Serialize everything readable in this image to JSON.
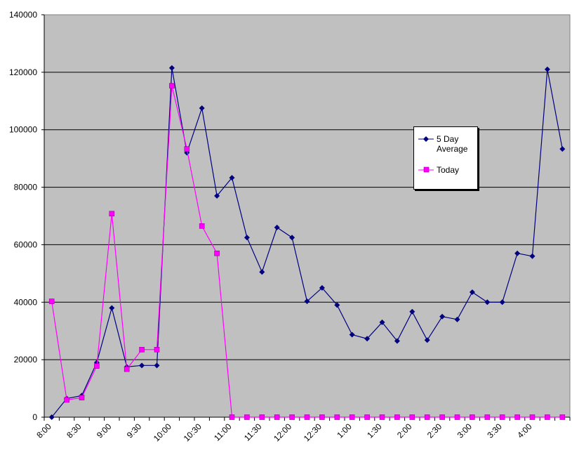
{
  "chart_data": {
    "type": "line",
    "title": "",
    "xlabel": "",
    "ylabel": "",
    "ylim": [
      0,
      140000
    ],
    "yticks": [
      0,
      20000,
      40000,
      60000,
      80000,
      100000,
      120000,
      140000
    ],
    "ytick_labels": [
      "0",
      "20000",
      "40000",
      "60000",
      "80000",
      "100000",
      "120000",
      "140000"
    ],
    "xtick_labels": [
      "8:00",
      "8:30",
      "9:00",
      "9:30",
      "10:00",
      "10:30",
      "11:00",
      "11:30",
      "12:00",
      "12:30",
      "1:00",
      "1:30",
      "2:00",
      "2:30",
      "3:00",
      "3:30",
      "4:00"
    ],
    "grid": "horizontal",
    "background": "#c0c0c0",
    "legend_position": "right",
    "series": [
      {
        "name": "5 Day Average",
        "legend_label": "5 Day\nAverage",
        "color": "#000080",
        "marker": "diamond",
        "values": [
          0,
          6500,
          7500,
          19000,
          38000,
          17500,
          18000,
          18000,
          121500,
          92000,
          107500,
          77000,
          83300,
          62500,
          50500,
          66000,
          62500,
          40300,
          45000,
          39000,
          28700,
          27300,
          33000,
          26500,
          36700,
          26800,
          35000,
          34000,
          43500,
          40000,
          40000,
          57000,
          56000,
          121000,
          93300
        ]
      },
      {
        "name": "Today",
        "legend_label": "Today",
        "color": "#ff00ff",
        "marker": "square",
        "values": [
          40300,
          6000,
          6800,
          17800,
          70800,
          16700,
          23500,
          23500,
          115300,
          93300,
          66500,
          57000,
          0,
          0,
          0,
          0,
          0,
          0,
          0,
          0,
          0,
          0,
          0,
          0,
          0,
          0,
          0,
          0,
          0,
          0,
          0,
          0,
          0,
          0,
          0
        ]
      }
    ]
  }
}
